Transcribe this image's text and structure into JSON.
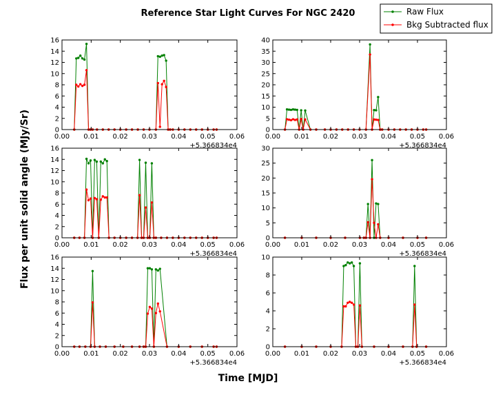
{
  "figure": {
    "title": "Reference Star Light Curves For NGC 2420",
    "xlabel": "Time [MJD]",
    "ylabel": "Flux per unit solid angle (MJy/Sr)",
    "offset_label": "+5.366834e4"
  },
  "colors": {
    "raw": "#008000",
    "bkg": "#ff0000"
  },
  "legend": {
    "placement": "top-right",
    "entries": [
      "Raw Flux",
      "Bkg Subtracted flux"
    ]
  },
  "chart_data": [
    {
      "type": "line",
      "xlim": [
        0,
        0.06
      ],
      "ylim": [
        0,
        16
      ],
      "xticks": [
        0,
        0.01,
        0.02,
        0.03,
        0.04,
        0.05,
        0.06
      ],
      "xticklabels": [
        "0.00",
        "0.01",
        "0.02",
        "0.03",
        "0.04",
        "0.05",
        "0.06"
      ],
      "yticks": [
        0,
        2,
        4,
        6,
        8,
        10,
        12,
        14,
        16
      ],
      "yticklabels": [
        "0",
        "2",
        "4",
        "6",
        "8",
        "10",
        "12",
        "14",
        "16"
      ],
      "series": [
        {
          "name": "Raw Flux",
          "x": [
            0.0042,
            0.0049,
            0.0056,
            0.0063,
            0.007,
            0.0077,
            0.0084,
            0.0091,
            0.0098,
            0.0105,
            0.012,
            0.014,
            0.016,
            0.018,
            0.02,
            0.022,
            0.024,
            0.026,
            0.028,
            0.03,
            0.0322,
            0.0329,
            0.0336,
            0.0343,
            0.035,
            0.0357,
            0.0364,
            0.0371,
            0.038,
            0.04,
            0.042,
            0.044,
            0.046,
            0.048,
            0.05,
            0.052,
            0.053
          ],
          "y": [
            0,
            12.7,
            12.8,
            13.2,
            12.7,
            12.5,
            15.3,
            0,
            0,
            0,
            0,
            0,
            0,
            0,
            0,
            0,
            0,
            0,
            0,
            0,
            0,
            13.1,
            13.0,
            13.2,
            13.3,
            12.3,
            0,
            0,
            0,
            0,
            0,
            0,
            0,
            0,
            0,
            0,
            0
          ]
        },
        {
          "name": "Bkg Subtracted flux",
          "x": [
            0.0042,
            0.0049,
            0.0056,
            0.0063,
            0.007,
            0.0077,
            0.0084,
            0.0091,
            0.0098,
            0.0105,
            0.012,
            0.014,
            0.016,
            0.018,
            0.02,
            0.022,
            0.024,
            0.026,
            0.028,
            0.03,
            0.0322,
            0.0329,
            0.0336,
            0.0343,
            0.035,
            0.0357,
            0.0364,
            0.0371,
            0.038,
            0.04,
            0.042,
            0.044,
            0.046,
            0.048,
            0.05,
            0.052,
            0.053
          ],
          "y": [
            0,
            8.0,
            7.7,
            8.1,
            7.8,
            8.0,
            10.6,
            0,
            0,
            0,
            0,
            0,
            0,
            0,
            0,
            0,
            0,
            0,
            0,
            0,
            0,
            8.3,
            0.5,
            8.1,
            8.7,
            7.6,
            0,
            0,
            0,
            0,
            0,
            0,
            0,
            0,
            0,
            0,
            0
          ]
        }
      ]
    },
    {
      "type": "line",
      "xlim": [
        0,
        0.06
      ],
      "ylim": [
        0,
        40
      ],
      "xticks": [
        0,
        0.01,
        0.02,
        0.03,
        0.04,
        0.05,
        0.06
      ],
      "xticklabels": [
        "0.00",
        "0.01",
        "0.02",
        "0.03",
        "0.04",
        "0.05",
        "0.06"
      ],
      "yticks": [
        0,
        5,
        10,
        15,
        20,
        25,
        30,
        35,
        40
      ],
      "yticklabels": [
        "0",
        "5",
        "10",
        "15",
        "20",
        "25",
        "30",
        "35",
        "40"
      ],
      "series": [
        {
          "name": "Raw Flux",
          "x": [
            0.0042,
            0.0049,
            0.0056,
            0.0063,
            0.007,
            0.0077,
            0.0084,
            0.0091,
            0.0098,
            0.0105,
            0.0112,
            0.013,
            0.015,
            0.018,
            0.02,
            0.022,
            0.024,
            0.026,
            0.028,
            0.03,
            0.0322,
            0.0336,
            0.0343,
            0.035,
            0.0357,
            0.0364,
            0.0371,
            0.0378,
            0.04,
            0.042,
            0.044,
            0.046,
            0.048,
            0.05,
            0.052,
            0.053
          ],
          "y": [
            0,
            9.0,
            8.9,
            8.8,
            9.0,
            8.9,
            8.8,
            0,
            8.6,
            0,
            8.5,
            0,
            0,
            0,
            0,
            0,
            0,
            0,
            0,
            0,
            0,
            38.0,
            0,
            8.7,
            8.6,
            14.5,
            0,
            0,
            0,
            0,
            0,
            0,
            0,
            0,
            0,
            0
          ]
        },
        {
          "name": "Bkg Subtracted flux",
          "x": [
            0.0042,
            0.0049,
            0.0056,
            0.0063,
            0.007,
            0.0077,
            0.0084,
            0.0091,
            0.0098,
            0.0105,
            0.0112,
            0.013,
            0.015,
            0.018,
            0.02,
            0.022,
            0.024,
            0.026,
            0.028,
            0.03,
            0.0322,
            0.0336,
            0.0343,
            0.035,
            0.0357,
            0.0364,
            0.0371,
            0.0378,
            0.04,
            0.042,
            0.044,
            0.046,
            0.048,
            0.05,
            0.052,
            0.053
          ],
          "y": [
            0,
            4.6,
            4.4,
            4.2,
            4.6,
            4.3,
            4.5,
            0,
            4.7,
            0,
            4.5,
            0,
            0,
            0,
            0,
            0,
            0,
            0,
            0,
            0,
            0,
            33.5,
            0,
            4.5,
            4.4,
            4.3,
            0,
            0,
            0,
            0,
            0,
            0,
            0,
            0,
            0,
            0
          ]
        }
      ]
    },
    {
      "type": "line",
      "xlim": [
        0,
        0.06
      ],
      "ylim": [
        0,
        16
      ],
      "xticks": [
        0,
        0.01,
        0.02,
        0.03,
        0.04,
        0.05,
        0.06
      ],
      "xticklabels": [
        "0.00",
        "0.01",
        "0.02",
        "0.03",
        "0.04",
        "0.05",
        "0.06"
      ],
      "yticks": [
        0,
        2,
        4,
        6,
        8,
        10,
        12,
        14,
        16
      ],
      "yticklabels": [
        "0",
        "2",
        "4",
        "6",
        "8",
        "10",
        "12",
        "14",
        "16"
      ],
      "series": [
        {
          "name": "Raw Flux",
          "x": [
            0.0042,
            0.006,
            0.0077,
            0.0084,
            0.0091,
            0.0098,
            0.0105,
            0.0112,
            0.0119,
            0.0126,
            0.0133,
            0.014,
            0.0147,
            0.0154,
            0.0161,
            0.018,
            0.02,
            0.022,
            0.024,
            0.0259,
            0.0266,
            0.0273,
            0.028,
            0.0287,
            0.0294,
            0.0301,
            0.0308,
            0.0315,
            0.0322,
            0.034,
            0.036,
            0.038,
            0.04,
            0.042,
            0.044,
            0.046,
            0.048,
            0.05,
            0.052,
            0.053
          ],
          "y": [
            0,
            0,
            0,
            14.1,
            13.3,
            13.8,
            0,
            13.9,
            13.6,
            0,
            13.6,
            13.3,
            14.0,
            13.7,
            0,
            0,
            0,
            0,
            0,
            0,
            13.9,
            0,
            0,
            13.4,
            0,
            0,
            13.3,
            0,
            0,
            0,
            0,
            0,
            0,
            0,
            0,
            0,
            0,
            0,
            0,
            0
          ]
        },
        {
          "name": "Bkg Subtracted flux",
          "x": [
            0.0042,
            0.006,
            0.0077,
            0.0084,
            0.0091,
            0.0098,
            0.0105,
            0.0112,
            0.0119,
            0.0126,
            0.0133,
            0.014,
            0.0147,
            0.0154,
            0.0161,
            0.018,
            0.02,
            0.022,
            0.024,
            0.0259,
            0.0266,
            0.0273,
            0.028,
            0.0287,
            0.0294,
            0.0301,
            0.0308,
            0.0315,
            0.0322,
            0.034,
            0.036,
            0.038,
            0.04,
            0.042,
            0.044,
            0.046,
            0.048,
            0.05,
            0.052,
            0.053
          ],
          "y": [
            0,
            0,
            0,
            8.6,
            6.7,
            7.0,
            0,
            7.1,
            6.9,
            0,
            6.8,
            7.4,
            7.2,
            7.2,
            0,
            0,
            0,
            0,
            0,
            0,
            7.6,
            0,
            0,
            5.4,
            0,
            0,
            6.3,
            0,
            0,
            0,
            0,
            0,
            0,
            0,
            0,
            0,
            0,
            0,
            0,
            0
          ]
        }
      ]
    },
    {
      "type": "line",
      "xlim": [
        0,
        0.06
      ],
      "ylim": [
        0,
        30
      ],
      "xticks": [
        0,
        0.01,
        0.02,
        0.03,
        0.04,
        0.05,
        0.06
      ],
      "xticklabels": [
        "0.00",
        "0.01",
        "0.02",
        "0.03",
        "0.04",
        "0.05",
        "0.06"
      ],
      "yticks": [
        0,
        5,
        10,
        15,
        20,
        25,
        30
      ],
      "yticklabels": [
        "0",
        "5",
        "10",
        "15",
        "20",
        "25",
        "30"
      ],
      "series": [
        {
          "name": "Raw Flux",
          "x": [
            0.0042,
            0.01,
            0.015,
            0.02,
            0.025,
            0.0301,
            0.0315,
            0.0322,
            0.0329,
            0.0336,
            0.0343,
            0.035,
            0.0357,
            0.0364,
            0.0371,
            0.04,
            0.045,
            0.05,
            0.053
          ],
          "y": [
            0,
            0,
            0,
            0,
            0,
            0,
            0,
            0,
            11.3,
            0,
            26.0,
            0,
            11.5,
            11.3,
            0,
            0,
            0,
            0,
            0
          ]
        },
        {
          "name": "Bkg Subtracted flux",
          "x": [
            0.0042,
            0.01,
            0.015,
            0.02,
            0.025,
            0.0301,
            0.0315,
            0.0322,
            0.0329,
            0.0336,
            0.0343,
            0.035,
            0.0357,
            0.0364,
            0.0371,
            0.04,
            0.045,
            0.05,
            0.053
          ],
          "y": [
            0,
            0,
            0,
            0,
            0,
            0,
            0,
            0,
            5.2,
            0,
            19.6,
            5.0,
            0,
            4.5,
            0,
            0,
            0,
            0,
            0
          ]
        }
      ]
    },
    {
      "type": "line",
      "xlim": [
        0,
        0.06
      ],
      "ylim": [
        0,
        16
      ],
      "xticks": [
        0,
        0.01,
        0.02,
        0.03,
        0.04,
        0.05,
        0.06
      ],
      "xticklabels": [
        "0.00",
        "0.01",
        "0.02",
        "0.03",
        "0.04",
        "0.05",
        "0.06"
      ],
      "yticks": [
        0,
        2,
        4,
        6,
        8,
        10,
        12,
        14,
        16
      ],
      "yticklabels": [
        "0",
        "2",
        "4",
        "6",
        "8",
        "10",
        "12",
        "14",
        "16"
      ],
      "series": [
        {
          "name": "Raw Flux",
          "x": [
            0.0042,
            0.006,
            0.008,
            0.0098,
            0.0105,
            0.0112,
            0.013,
            0.015,
            0.018,
            0.021,
            0.024,
            0.0266,
            0.028,
            0.0287,
            0.0294,
            0.0301,
            0.0308,
            0.0315,
            0.0322,
            0.0329,
            0.0336,
            0.036,
            0.04,
            0.044,
            0.048,
            0.052,
            0.053
          ],
          "y": [
            0,
            0,
            0,
            0,
            13.5,
            0,
            0,
            0,
            0,
            0,
            0,
            0,
            0,
            0,
            14.0,
            14.0,
            13.8,
            0,
            13.8,
            13.6,
            13.9,
            0,
            0,
            0,
            0,
            0,
            0
          ]
        },
        {
          "name": "Bkg Subtracted flux",
          "x": [
            0.0042,
            0.006,
            0.008,
            0.0098,
            0.0105,
            0.0112,
            0.013,
            0.015,
            0.018,
            0.021,
            0.024,
            0.0266,
            0.028,
            0.0287,
            0.0294,
            0.0301,
            0.0308,
            0.0315,
            0.0322,
            0.0329,
            0.0336,
            0.036,
            0.04,
            0.044,
            0.048,
            0.052,
            0.053
          ],
          "y": [
            0,
            0,
            0,
            0,
            7.9,
            0,
            0,
            0,
            0,
            0,
            0,
            0,
            0,
            0,
            5.9,
            7.1,
            6.8,
            0,
            6.0,
            7.7,
            6.3,
            0,
            0,
            0,
            0,
            0,
            0
          ]
        }
      ]
    },
    {
      "type": "line",
      "xlim": [
        0,
        0.06
      ],
      "ylim": [
        0,
        10
      ],
      "xticks": [
        0,
        0.01,
        0.02,
        0.03,
        0.04,
        0.05,
        0.06
      ],
      "xticklabels": [
        "0.00",
        "0.01",
        "0.02",
        "0.03",
        "0.04",
        "0.05",
        "0.06"
      ],
      "yticks": [
        0,
        2,
        4,
        6,
        8,
        10
      ],
      "yticklabels": [
        "0",
        "2",
        "4",
        "6",
        "8",
        "10"
      ],
      "series": [
        {
          "name": "Raw Flux",
          "x": [
            0.0042,
            0.01,
            0.015,
            0.02,
            0.0238,
            0.0245,
            0.0252,
            0.0259,
            0.0266,
            0.0273,
            0.028,
            0.0287,
            0.0294,
            0.0301,
            0.0308,
            0.035,
            0.04,
            0.045,
            0.0483,
            0.049,
            0.0497,
            0.053
          ],
          "y": [
            0,
            0,
            0,
            0,
            0,
            9.0,
            9.1,
            9.4,
            9.3,
            9.4,
            9.0,
            0,
            0,
            9.3,
            0,
            0,
            0,
            0,
            0,
            9.0,
            0,
            0
          ]
        },
        {
          "name": "Bkg Subtracted flux",
          "x": [
            0.0042,
            0.01,
            0.015,
            0.02,
            0.0238,
            0.0245,
            0.0252,
            0.0259,
            0.0266,
            0.0273,
            0.028,
            0.0287,
            0.0294,
            0.0301,
            0.0308,
            0.035,
            0.04,
            0.045,
            0.0483,
            0.049,
            0.0497,
            0.053
          ],
          "y": [
            0,
            0,
            0,
            0,
            0,
            4.5,
            4.5,
            4.9,
            5.0,
            4.9,
            4.7,
            0,
            0,
            4.6,
            0,
            0,
            0,
            0,
            0,
            4.7,
            0,
            0
          ]
        }
      ]
    }
  ]
}
